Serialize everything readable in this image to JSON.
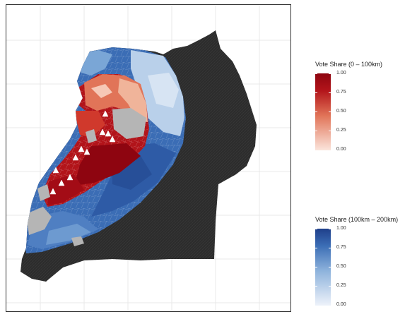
{
  "legend_near": {
    "title": "Vote Share (0 – 100km)",
    "ticks": [
      "1.00",
      "0.75",
      "0.50",
      "0.25",
      "0.00"
    ],
    "colors": [
      "#fbe5dc",
      "#e17458",
      "#b2141a",
      "#8e0510"
    ]
  },
  "legend_far": {
    "title": "Vote Share (100km – 200km)",
    "ticks": [
      "1.00",
      "0.75",
      "0.50",
      "0.25",
      "0.00"
    ],
    "colors": [
      "#eef2fa",
      "#8eb3dc",
      "#3b6db5",
      "#1f3f8a"
    ]
  },
  "map": {
    "ocean_color": "#ffffff",
    "outside_color": "#2c2c2c",
    "missing_color": "#b5b5b5",
    "grid_color": "#e8e8e8"
  }
}
